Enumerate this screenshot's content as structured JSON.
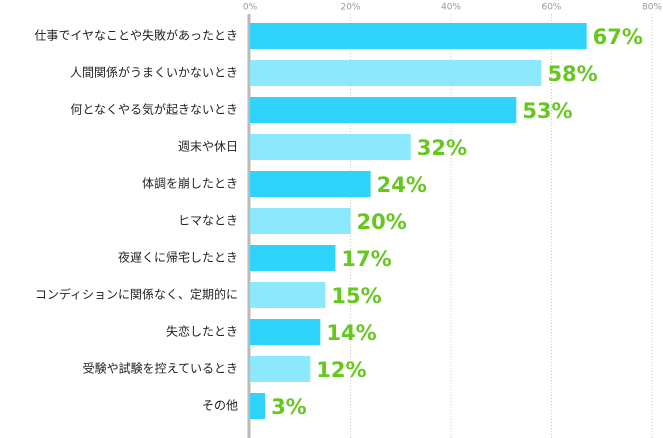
{
  "chart_data": {
    "type": "bar",
    "orientation": "horizontal",
    "categories": [
      "仕事でイヤなことや失敗があったとき",
      "人間関係がうまくいかないとき",
      "何となくやる気が起きないとき",
      "週末や休日",
      "体調を崩したとき",
      "ヒマなとき",
      "夜遅くに帰宅したとき",
      "コンディションに関係なく、定期的に",
      "失恋したとき",
      "受験や試験を控えているとき",
      "その他"
    ],
    "values": [
      67,
      58,
      53,
      32,
      24,
      20,
      17,
      15,
      14,
      12,
      3
    ],
    "value_labels": [
      "67%",
      "58%",
      "53%",
      "32%",
      "24%",
      "20%",
      "17%",
      "15%",
      "14%",
      "12%",
      "3%"
    ],
    "colors": [
      "#2fd3fc",
      "#8ce8fc"
    ],
    "value_label_color": "#66c71f",
    "xlim": [
      0,
      80
    ],
    "xticks": [
      {
        "value": 0,
        "label": "0%"
      },
      {
        "value": 20,
        "label": "20%"
      },
      {
        "value": 40,
        "label": "40%"
      },
      {
        "value": 60,
        "label": "60%"
      },
      {
        "value": 80,
        "label": "80%"
      }
    ],
    "grid": true
  }
}
